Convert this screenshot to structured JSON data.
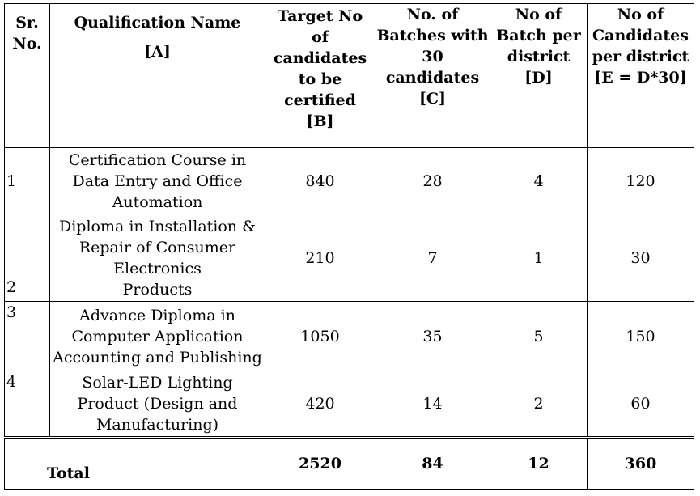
{
  "table": {
    "headers": {
      "sr": [
        "Sr.",
        "No."
      ],
      "qualification": [
        "Qualification Name",
        "[A]"
      ],
      "target": [
        "Target No",
        "of",
        "candidates",
        "to be",
        "certified",
        "[B]"
      ],
      "batches": [
        "No. of",
        "Batches with",
        "30",
        "candidates",
        "[C]"
      ],
      "batch_per_district": [
        "No of",
        "Batch per",
        "district",
        "[D]"
      ],
      "candidates_per_district": [
        "No of",
        "Candidates",
        "per district",
        "[E = D*30]"
      ]
    },
    "rows": [
      {
        "sr": "1",
        "qualification": [
          "Certification Course in",
          "Data Entry and Office",
          "Automation"
        ],
        "target": "840",
        "batches": "28",
        "batch_per_district": "4",
        "candidates_per_district": "120"
      },
      {
        "sr": "2",
        "qualification": [
          "Diploma in Installation &",
          "Repair of Consumer",
          "Electronics",
          "Products"
        ],
        "target": "210",
        "batches": "7",
        "batch_per_district": "1",
        "candidates_per_district": "30"
      },
      {
        "sr": "3",
        "qualification": [
          "Advance Diploma in",
          "Computer Application",
          "Accounting and Publishing"
        ],
        "target": "1050",
        "batches": "35",
        "batch_per_district": "5",
        "candidates_per_district": "150"
      },
      {
        "sr": "4",
        "qualification": [
          "Solar-LED Lighting",
          "Product (Design and",
          "Manufacturing)"
        ],
        "target": "420",
        "batches": "14",
        "batch_per_district": "2",
        "candidates_per_district": "60"
      }
    ],
    "total": {
      "label": "Total",
      "target": "2520",
      "batches": "84",
      "batch_per_district": "12",
      "candidates_per_district": "360"
    }
  }
}
